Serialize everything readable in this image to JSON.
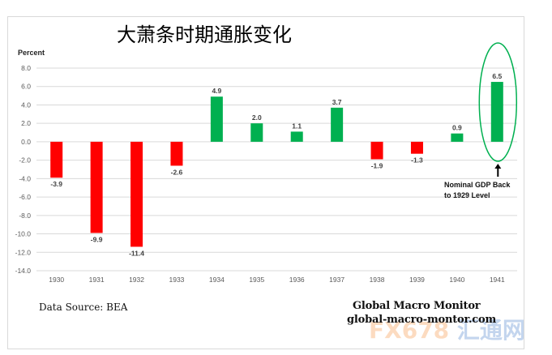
{
  "title": "大萧条时期通胀变化",
  "y_axis_label": "Percent",
  "source": "Data Source: BEA",
  "brand": {
    "name": "Global Macro Monitor",
    "url_text": "global-macro-montor.com"
  },
  "annotation": {
    "line1": "Nominal GDP Back",
    "line2": "to 1929 Level",
    "target_year": "1941"
  },
  "watermark": {
    "latin": "FX678",
    "cjk": "汇通网"
  },
  "colors": {
    "negative": "#ff0000",
    "positive": "#00b050",
    "gridline": "#d9d9d9",
    "ellipse": "#00b050"
  },
  "chart_data": {
    "type": "bar",
    "title": "大萧条时期通胀变化",
    "xlabel": "",
    "ylabel": "Percent",
    "ylim": [
      -14.0,
      8.0
    ],
    "yticks": [
      "8.0",
      "6.0",
      "4.0",
      "2.0",
      "0.0",
      "-2.0",
      "-4.0",
      "-6.0",
      "-8.0",
      "-10.0",
      "-12.0",
      "-14.0"
    ],
    "grid": true,
    "legend": null,
    "categories": [
      "1930",
      "1931",
      "1932",
      "1933",
      "1934",
      "1935",
      "1936",
      "1937",
      "1938",
      "1939",
      "1940",
      "1941"
    ],
    "values": [
      -3.9,
      -9.9,
      -11.4,
      -2.6,
      4.9,
      2.0,
      1.1,
      3.7,
      -1.9,
      -1.3,
      0.9,
      6.5
    ],
    "data_labels": [
      "-3.9",
      "-9.9",
      "-11.4",
      "-2.6",
      "4.9",
      "2.0",
      "1.1",
      "3.7",
      "-1.9",
      "-1.3",
      "0.9",
      "6.5"
    ],
    "annotations": [
      {
        "text": "Nominal GDP Back to 1929 Level",
        "target": "1941",
        "marker": "ellipse + arrow"
      }
    ]
  }
}
